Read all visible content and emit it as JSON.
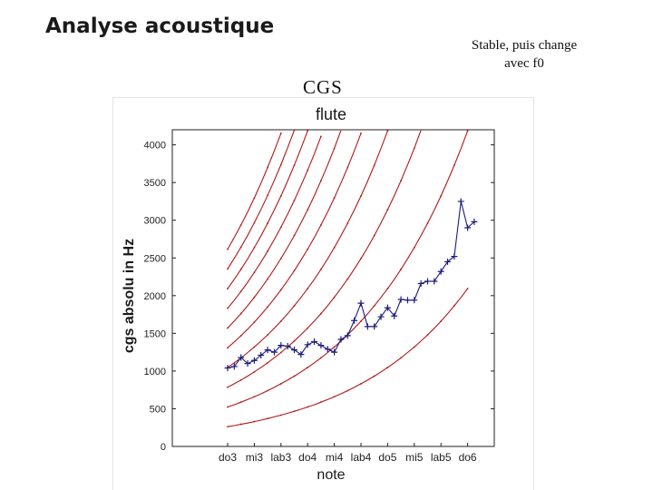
{
  "slide": {
    "title": "Analyse acoustique",
    "section_label": "CGS",
    "note_line1": "Stable, puis change",
    "note_line2": "avec f0"
  },
  "colors": {
    "background": "#ffffff",
    "harmonic_curves": "#b01818",
    "measured_series": "#1c1c7a"
  },
  "chart_data": {
    "type": "line",
    "title": "flute",
    "xlabel": "note",
    "ylabel": "cgs absolu in Hz",
    "ylim": [
      0,
      4200
    ],
    "yticks": [
      0,
      500,
      1000,
      1500,
      2000,
      2500,
      3000,
      3500,
      4000
    ],
    "xticks": [
      "do3",
      "mi3",
      "lab3",
      "do4",
      "mi4",
      "lab4",
      "do5",
      "mi5",
      "lab5",
      "do6"
    ],
    "grid": false,
    "series": [
      {
        "values": [
          1040,
          1060,
          1180,
          1100,
          1140,
          1210,
          1280,
          1250,
          1340,
          1330,
          1280,
          1220,
          1350,
          1390,
          1340,
          1290,
          1250,
          1420,
          1470,
          1670,
          1900,
          1590,
          1590,
          1720,
          1840,
          1730,
          1950,
          1940,
          1940,
          2160,
          2190,
          2190,
          2320,
          2450,
          2520,
          3250,
          2900,
          2980
        ]
      },
      {
        "name": "",
        "values": [
          262,
          277,
          294,
          311,
          330,
          349,
          370,
          392,
          415,
          440,
          466,
          494,
          523,
          554,
          587,
          622,
          659,
          698,
          740,
          784,
          831,
          880,
          932,
          988,
          1047,
          1109,
          1175,
          1245,
          1319,
          1397,
          1480,
          1568,
          1661,
          1760,
          1865,
          1976,
          2093
        ]
      },
      {
        "name": "",
        "values": [
          523,
          554,
          587,
          622,
          659,
          698,
          740,
          784,
          831,
          880,
          932,
          988,
          1047,
          1109,
          1175,
          1245,
          1319,
          1397,
          1480,
          1568,
          1661,
          1760,
          1865,
          1976,
          2093,
          2217,
          2349,
          2489,
          2637,
          2794,
          2960,
          3136,
          3322,
          3520,
          3729,
          3951,
          4186
        ]
      },
      {
        "name": "",
        "values": [
          785,
          831,
          881,
          933,
          989,
          1048,
          1110,
          1176,
          1246,
          1320,
          1398,
          1482,
          1570,
          1663,
          1762,
          1867,
          1978,
          2096,
          2220,
          2352,
          2492,
          2640,
          2797,
          2963,
          3140,
          3327,
          3524,
          3734,
          3956,
          4191
        ]
      },
      {
        "name": "",
        "values": [
          1047,
          1109,
          1175,
          1245,
          1319,
          1397,
          1480,
          1568,
          1661,
          1760,
          1865,
          1976,
          2093,
          2217,
          2349,
          2489,
          2637,
          2794,
          2960,
          3136,
          3322,
          3520,
          3729,
          3951,
          4186
        ]
      },
      {
        "name": "",
        "values": [
          1308,
          1386,
          1468,
          1556,
          1648,
          1746,
          1850,
          1960,
          2077,
          2200,
          2331,
          2469,
          2616,
          2772,
          2937,
          3111,
          3296,
          3492,
          3700,
          3920,
          4153
        ]
      },
      {
        "name": "",
        "values": [
          1570,
          1663,
          1762,
          1867,
          1978,
          2096,
          2220,
          2352,
          2492,
          2640,
          2797,
          2963,
          3139,
          3326,
          3524,
          3733,
          3955,
          4190
        ]
      },
      {
        "name": "",
        "values": [
          1832,
          1940,
          2056,
          2178,
          2308,
          2445,
          2590,
          2744,
          2907,
          3080,
          3263,
          3457,
          3662,
          3880,
          4111
        ]
      },
      {
        "name": "",
        "values": [
          2093,
          2217,
          2349,
          2489,
          2637,
          2794,
          2960,
          3136,
          3322,
          3520,
          3729,
          3951,
          4186
        ]
      },
      {
        "name": "",
        "values": [
          2355,
          2495,
          2643,
          2800,
          2966,
          3143,
          3330,
          3528,
          3737,
          3960,
          4195
        ]
      },
      {
        "name": "",
        "values": [
          2616,
          2772,
          2937,
          3111,
          3296,
          3492,
          3700,
          3920,
          4153
        ]
      }
    ]
  }
}
